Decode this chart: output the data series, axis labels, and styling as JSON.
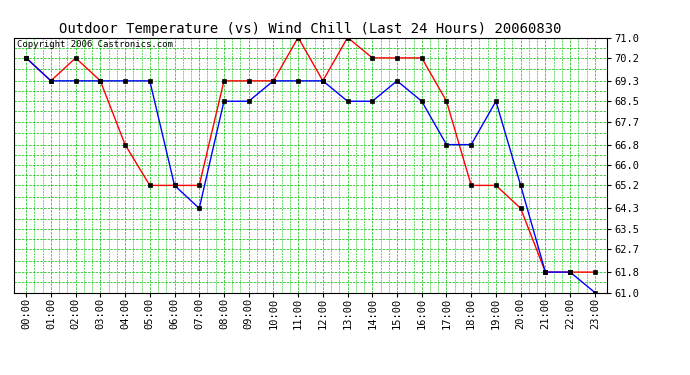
{
  "title": "Outdoor Temperature (vs) Wind Chill (Last 24 Hours) 20060830",
  "copyright": "Copyright 2006 Castronics.com",
  "x_labels": [
    "00:00",
    "01:00",
    "02:00",
    "03:00",
    "04:00",
    "05:00",
    "06:00",
    "07:00",
    "08:00",
    "09:00",
    "10:00",
    "11:00",
    "12:00",
    "13:00",
    "14:00",
    "15:00",
    "16:00",
    "17:00",
    "18:00",
    "19:00",
    "20:00",
    "21:00",
    "22:00",
    "23:00"
  ],
  "red_data": [
    70.2,
    69.3,
    70.2,
    69.3,
    66.8,
    65.2,
    65.2,
    65.2,
    69.3,
    69.3,
    69.3,
    71.0,
    69.3,
    71.0,
    70.2,
    70.2,
    70.2,
    68.5,
    65.2,
    65.2,
    64.3,
    61.8,
    61.8,
    61.8
  ],
  "blue_data": [
    70.2,
    69.3,
    69.3,
    69.3,
    69.3,
    69.3,
    65.2,
    64.3,
    68.5,
    68.5,
    69.3,
    69.3,
    69.3,
    68.5,
    68.5,
    69.3,
    68.5,
    66.8,
    66.8,
    68.5,
    65.2,
    61.8,
    61.8,
    61.0
  ],
  "ylim_min": 61.0,
  "ylim_max": 71.0,
  "yticks": [
    61.0,
    61.8,
    62.7,
    63.5,
    64.3,
    65.2,
    66.0,
    66.8,
    67.7,
    68.5,
    69.3,
    70.2,
    71.0
  ],
  "background_color": "#ffffff",
  "plot_bg_color": "#ffffff",
  "red_color": "#ff0000",
  "blue_color": "#0000ff",
  "grid_color": "#00bb00",
  "title_fontsize": 10,
  "tick_fontsize": 7.5,
  "copyright_fontsize": 6.5
}
